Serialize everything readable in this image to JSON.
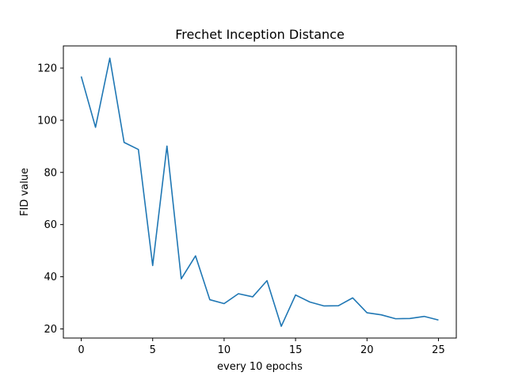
{
  "chart_data": {
    "type": "line",
    "title": "Frechet Inception Distance",
    "xlabel": "every 10 epochs",
    "ylabel": "FID value",
    "xlim": [
      -1.25,
      26.25
    ],
    "ylim": [
      16.5,
      128.5
    ],
    "xticks": [
      0,
      5,
      10,
      15,
      20,
      25
    ],
    "yticks": [
      20,
      40,
      60,
      80,
      100,
      120
    ],
    "grid": false,
    "series": [
      {
        "color": "#1f77b4",
        "x": [
          0,
          1,
          2,
          3,
          4,
          5,
          6,
          7,
          8,
          9,
          10,
          11,
          12,
          13,
          14,
          15,
          16,
          17,
          18,
          19,
          20,
          21,
          22,
          23,
          24,
          25
        ],
        "y": [
          116.8,
          97.3,
          123.8,
          91.5,
          88.8,
          44.3,
          90.1,
          39.2,
          48.0,
          31.2,
          29.7,
          33.5,
          32.3,
          38.5,
          21.0,
          33.0,
          30.3,
          28.8,
          28.9,
          31.9,
          26.2,
          25.4,
          23.9,
          24.0,
          24.8,
          23.4
        ]
      }
    ]
  }
}
